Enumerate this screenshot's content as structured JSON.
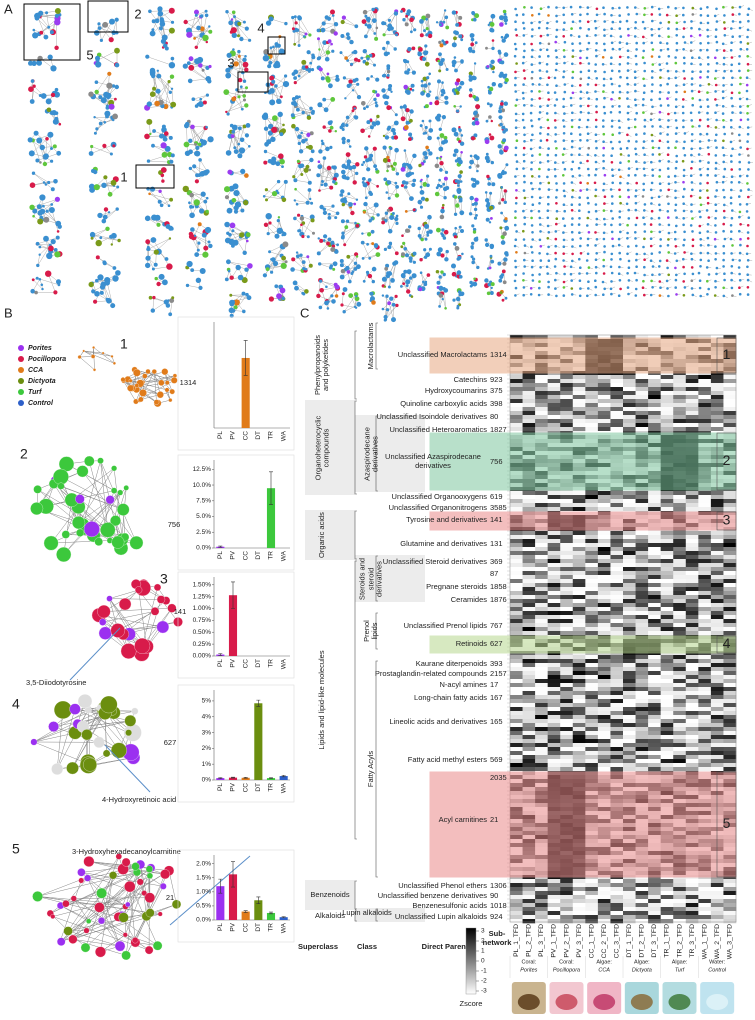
{
  "panel_a": {
    "letter": "A",
    "box_labels": [
      "1",
      "2",
      "3",
      "4",
      "5"
    ]
  },
  "panel_b": {
    "letter": "B",
    "legend": [
      {
        "name": "Porites",
        "color": "#9b30f0"
      },
      {
        "name": "Pocillopora",
        "color": "#d81b4a"
      },
      {
        "name": "CCA",
        "color": "#e07b1a"
      },
      {
        "name": "Dictyota",
        "color": "#6b8e0f"
      },
      {
        "name": "Turf",
        "color": "#3cc83c"
      },
      {
        "name": "Control",
        "color": "#2d5fc9"
      }
    ],
    "network_labels": [
      "1",
      "2",
      "3",
      "4",
      "5"
    ],
    "annotations": [
      "3,5-Diiodotyrosine",
      "4-Hydroxyretinoic acid",
      "3-Hydroxyhexadecanoylcarnitine"
    ]
  },
  "chart_data": [
    {
      "type": "bar",
      "label": "1314",
      "categories": [
        "PL",
        "PV",
        "CC",
        "DT",
        "TR",
        "WA"
      ],
      "values": [
        0,
        0,
        0.68,
        0,
        0,
        0
      ],
      "errors": [
        0,
        0,
        0.17,
        0,
        0,
        0
      ],
      "colors": [
        "#9b30f0",
        "#d81b4a",
        "#e07b1a",
        "#6b8e0f",
        "#3cc83c",
        "#2d5fc9"
      ],
      "ylim": [
        0,
        1
      ]
    },
    {
      "type": "bar",
      "label": "756",
      "categories": [
        "PL",
        "PV",
        "CC",
        "DT",
        "TR",
        "WA"
      ],
      "values": [
        0.2,
        0,
        0,
        0,
        9.5,
        0
      ],
      "errors": [
        0.1,
        0,
        0,
        0,
        2.6,
        0
      ],
      "colors": [
        "#9b30f0",
        "#d81b4a",
        "#e07b1a",
        "#6b8e0f",
        "#3cc83c",
        "#2d5fc9"
      ],
      "ylim": [
        0,
        13.5
      ],
      "yticks": [
        {
          "value": 0,
          "label": "0.0%"
        },
        {
          "value": 2.5,
          "label": "2.5%"
        },
        {
          "value": 5,
          "label": "5.0%"
        },
        {
          "value": 7.5,
          "label": "7.5%"
        },
        {
          "value": 10,
          "label": "10.0%"
        },
        {
          "value": 12.5,
          "label": "12.5%"
        }
      ]
    },
    {
      "type": "bar",
      "label": "141",
      "categories": [
        "PL",
        "PV",
        "CC",
        "DT",
        "TR",
        "WA"
      ],
      "values": [
        0.03,
        1.28,
        0,
        0,
        0,
        0
      ],
      "errors": [
        0.02,
        0.28,
        0,
        0,
        0,
        0
      ],
      "colors": [
        "#9b30f0",
        "#d81b4a",
        "#e07b1a",
        "#6b8e0f",
        "#3cc83c",
        "#2d5fc9"
      ],
      "ylim": [
        0,
        1.6
      ],
      "yticks": [
        {
          "value": 0,
          "label": "0.00%"
        },
        {
          "value": 0.25,
          "label": "0.25%"
        },
        {
          "value": 0.5,
          "label": "0.50%"
        },
        {
          "value": 0.75,
          "label": "0.75%"
        },
        {
          "value": 1,
          "label": "1.00%"
        },
        {
          "value": 1.25,
          "label": "1.25%"
        },
        {
          "value": 1.5,
          "label": "1.50%"
        }
      ]
    },
    {
      "type": "bar",
      "label": "627",
      "categories": [
        "PL",
        "PV",
        "CC",
        "DT",
        "TR",
        "WA"
      ],
      "values": [
        0.12,
        0.15,
        0.14,
        4.85,
        0.12,
        0.25
      ],
      "errors": [
        0.03,
        0.03,
        0.03,
        0.2,
        0.03,
        0.05
      ],
      "colors": [
        "#9b30f0",
        "#d81b4a",
        "#e07b1a",
        "#6b8e0f",
        "#3cc83c",
        "#2d5fc9"
      ],
      "ylim": [
        0,
        5.5
      ],
      "yticks": [
        {
          "value": 0,
          "label": "0%"
        },
        {
          "value": 1,
          "label": "1%"
        },
        {
          "value": 2,
          "label": "2%"
        },
        {
          "value": 3,
          "label": "3%"
        },
        {
          "value": 4,
          "label": "4%"
        },
        {
          "value": 5,
          "label": "5%"
        }
      ]
    },
    {
      "type": "bar",
      "label": "21",
      "categories": [
        "PL",
        "PV",
        "CC",
        "DT",
        "TR",
        "WA"
      ],
      "values": [
        1.2,
        1.62,
        0.3,
        0.7,
        0.25,
        0.1
      ],
      "errors": [
        0.25,
        0.45,
        0.03,
        0.12,
        0.03,
        0.02
      ],
      "colors": [
        "#9b30f0",
        "#d81b4a",
        "#e07b1a",
        "#6b8e0f",
        "#3cc83c",
        "#2d5fc9"
      ],
      "ylim": [
        0,
        2.2
      ],
      "yticks": [
        {
          "value": 0,
          "label": "0.0%"
        },
        {
          "value": 0.5,
          "label": "0.5%"
        },
        {
          "value": 1,
          "label": "1.0%"
        },
        {
          "value": 1.5,
          "label": "1.5%"
        },
        {
          "value": 2,
          "label": "2.0%"
        }
      ]
    }
  ],
  "heatmap": {
    "letter": "C",
    "headers": {
      "superclass": "Superclass",
      "class": "Class",
      "direct_parent": "Direct Parent",
      "subnetwork": [
        "Sub-",
        "network"
      ]
    },
    "superclasses": [
      "Phenylpropanoids and polyketides",
      "Organoheterocyclic compounds",
      "Organic acids",
      "Lipids and lipid-like molecules",
      "Benzenoids",
      "Alkaloids"
    ],
    "classes": [
      "Macrolactams",
      "Azaspirodecane derivatives",
      "Steroids and steroid derivatives",
      "Prenol lipids",
      "Fatty Acyls",
      "Lupin alkaloids"
    ],
    "rows": [
      {
        "parent": "Unclassified Macrolactams",
        "subnetwork": "1314"
      },
      {
        "parent": "Catechins",
        "subnetwork": "923"
      },
      {
        "parent": "Hydroxycoumarins",
        "subnetwork": "375"
      },
      {
        "parent": "Quinoline carboxylic acids",
        "subnetwork": "398"
      },
      {
        "parent": "Unclassified Isoindole derivatives",
        "subnetwork": "80"
      },
      {
        "parent": "Unclassified Heteroaromatics",
        "subnetwork": "1827"
      },
      {
        "parent": "Unclassified Azaspirodecane derivatives",
        "subnetwork": "756"
      },
      {
        "parent": "Unclassified Organooxygens",
        "subnetwork": "619"
      },
      {
        "parent": "Unclassified Organonitrogens",
        "subnetwork": "3585"
      },
      {
        "parent": "Tyrosine and derivatives",
        "subnetwork": "141"
      },
      {
        "parent": "Glutamine and derivatives",
        "subnetwork": "131"
      },
      {
        "parent": "Unclassified Steroid derivatives",
        "subnetwork": "369"
      },
      {
        "parent": null,
        "subnetwork": "87"
      },
      {
        "parent": "Pregnane steroids",
        "subnetwork": "1858"
      },
      {
        "parent": "Ceramides",
        "subnetwork": "1876"
      },
      {
        "parent": "Unclassified Prenol lipids",
        "subnetwork": "767"
      },
      {
        "parent": "Retinoids",
        "subnetwork": "627"
      },
      {
        "parent": "Kaurane diterpenoids",
        "subnetwork": "393"
      },
      {
        "parent": "Prostaglandin-related compounds",
        "subnetwork": "2157"
      },
      {
        "parent": "N-acyl amines",
        "subnetwork": "17"
      },
      {
        "parent": "Long-chain fatty acids",
        "subnetwork": "167"
      },
      {
        "parent": "Lineolic acids and derivatives",
        "subnetwork": "165"
      },
      {
        "parent": "Fatty acid methyl esters",
        "subnetwork": "569"
      },
      {
        "parent": null,
        "subnetwork": "2035"
      },
      {
        "parent": "Acyl carnitines",
        "subnetwork": "21"
      },
      {
        "parent": "Unclassified Phenol ethers",
        "subnetwork": "1306"
      },
      {
        "parent": "Unclassified benzene derivatives",
        "subnetwork": "90"
      },
      {
        "parent": "Benzenesulfonic acids",
        "subnetwork": "1018"
      },
      {
        "parent": "Unclassified Lupin alkaloids",
        "subnetwork": "924"
      }
    ],
    "highlights": [
      "1",
      "2",
      "3",
      "4",
      "5"
    ],
    "columns": [
      "PL_1_TFD",
      "PL_2_TFD",
      "PL_3_TFD",
      "PV_1_TFD",
      "PV_2_TFD",
      "PV_3_TFD",
      "CC_1_TFD",
      "CC_2_TFD",
      "CC_3_TFD",
      "DT_1_TFD",
      "DT_2_TFD",
      "DT_3_TFD",
      "TR_1_TFD",
      "TR_2_TFD",
      "TR_3_TFD",
      "WA_1_TFD",
      "WA_2_TFD",
      "WA_3_TFD"
    ],
    "colorbar": {
      "title": "Zscore",
      "ticks": [
        "3",
        "2",
        "1",
        "0",
        "-1",
        "-2",
        "-3"
      ]
    },
    "samples": [
      {
        "group": "Coral:",
        "name": "Porites"
      },
      {
        "group": "Coral:",
        "name": "Pocillopora"
      },
      {
        "group": "Algae:",
        "name": "CCA"
      },
      {
        "group": "Algae:",
        "name": "Dictyota"
      },
      {
        "group": "Algae:",
        "name": "Turf"
      },
      {
        "group": "Water:",
        "name": "Control"
      }
    ]
  }
}
